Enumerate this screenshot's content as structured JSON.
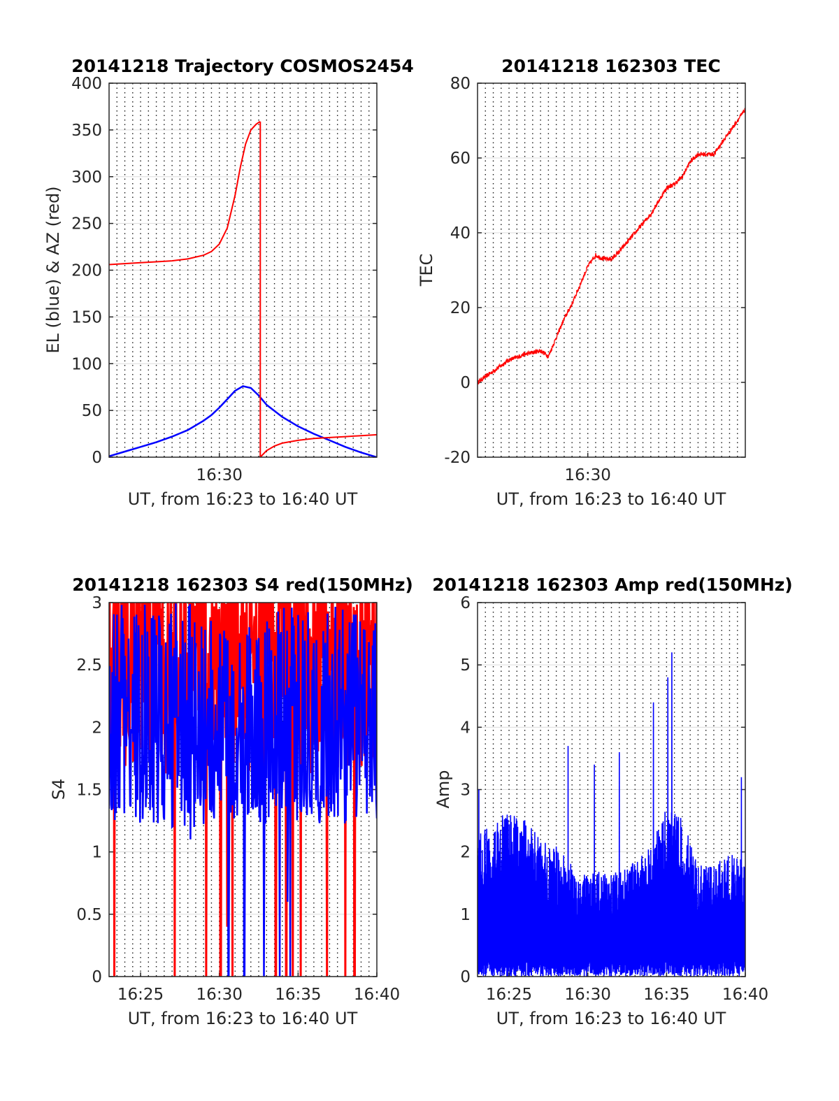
{
  "figure_date": "20141218",
  "chart_data": [
    {
      "id": "trajectory",
      "type": "line",
      "title": "20141218 Trajectory COSMOS2454",
      "xlabel": "UT, from 16:23 to 16:40 UT",
      "ylabel": "EL (blue) & AZ (red)",
      "xlim": [
        "16:23",
        "16:40"
      ],
      "ylim": [
        0,
        400
      ],
      "yticks": [
        0,
        50,
        100,
        150,
        200,
        250,
        300,
        350,
        400
      ],
      "xtick_labels": [
        {
          "t": "16:30",
          "label": "16:30"
        }
      ],
      "grid": "horizontal at y ticks; dotted verticals every 30 s",
      "series": [
        {
          "name": "EL",
          "color": "#0000ff",
          "x": [
            "16:23:00",
            "16:24:00",
            "16:25:00",
            "16:26:00",
            "16:27:00",
            "16:28:00",
            "16:29:00",
            "16:29:30",
            "16:30:00",
            "16:30:30",
            "16:31:00",
            "16:31:30",
            "16:32:00",
            "16:32:30",
            "16:33:00",
            "16:34:00",
            "16:35:00",
            "16:36:00",
            "16:37:00",
            "16:38:00",
            "16:39:00",
            "16:40:00"
          ],
          "y": [
            1,
            6,
            11,
            16,
            22,
            29,
            39,
            45,
            53,
            62,
            71,
            76,
            74,
            66,
            56,
            43,
            33,
            25,
            18,
            11,
            5,
            0
          ]
        },
        {
          "name": "AZ",
          "color": "#ff0000",
          "x": [
            "16:23:00",
            "16:24:00",
            "16:25:00",
            "16:26:00",
            "16:27:00",
            "16:28:00",
            "16:29:00",
            "16:29:30",
            "16:30:00",
            "16:30:30",
            "16:31:00",
            "16:31:20",
            "16:31:40",
            "16:32:00",
            "16:32:20",
            "16:32:35",
            "16:32:36",
            "16:33:00",
            "16:33:30",
            "16:34:00",
            "16:35:00",
            "16:36:00",
            "16:37:00",
            "16:38:00",
            "16:39:00",
            "16:40:00"
          ],
          "y": [
            206,
            207,
            208,
            209,
            210,
            212,
            216,
            220,
            228,
            245,
            280,
            310,
            335,
            350,
            356,
            359,
            0,
            7,
            12,
            15,
            18,
            20,
            21,
            22,
            23,
            24
          ]
        }
      ]
    },
    {
      "id": "tec",
      "type": "line",
      "title": "20141218 162303 TEC",
      "xlabel": "UT, from 16:23 to 16:40 UT",
      "ylabel": "TEC",
      "xlim": [
        "16:23",
        "16:40"
      ],
      "ylim": [
        -20,
        80
      ],
      "yticks": [
        -20,
        0,
        20,
        40,
        60,
        80
      ],
      "xtick_labels": [
        {
          "t": "16:30",
          "label": "16:30"
        }
      ],
      "grid": "horizontal at y ticks; dotted verticals every 30 s",
      "series": [
        {
          "name": "TEC",
          "color": "#ff0000",
          "noise": 1.2,
          "x": [
            "16:23:00",
            "16:24:00",
            "16:25:00",
            "16:26:00",
            "16:27:00",
            "16:27:30",
            "16:28:00",
            "16:28:30",
            "16:29:00",
            "16:29:30",
            "16:30:00",
            "16:30:30",
            "16:31:00",
            "16:31:30",
            "16:32:00",
            "16:33:00",
            "16:34:00",
            "16:35:00",
            "16:35:30",
            "16:36:00",
            "16:36:30",
            "16:37:00",
            "16:38:00",
            "16:39:00",
            "16:40:00"
          ],
          "y": [
            0,
            3,
            6,
            7.5,
            8.5,
            7,
            12,
            17,
            21,
            26,
            31,
            34,
            33,
            33,
            35,
            40,
            45,
            52,
            53,
            55,
            59,
            61,
            61,
            67,
            73
          ]
        }
      ]
    },
    {
      "id": "s4",
      "type": "line",
      "title": "20141218 162303 S4 red(150MHz)",
      "xlabel": "UT, from 16:23 to 16:40 UT",
      "ylabel": "S4",
      "xlim": [
        "16:23",
        "16:40"
      ],
      "ylim": [
        0,
        3
      ],
      "yticks": [
        0,
        0.5,
        1,
        1.5,
        2,
        2.5,
        3
      ],
      "xtick_labels": [
        {
          "t": "16:25",
          "label": "16:25"
        },
        {
          "t": "16:30",
          "label": "16:30"
        },
        {
          "t": "16:35",
          "label": "16:35"
        },
        {
          "t": "16:40",
          "label": "16:40"
        }
      ],
      "grid": "horizontal at y ticks; dotted verticals every 30 s",
      "series": [
        {
          "color": "#ff0000",
          "base": 2.7,
          "spread": 0.8,
          "floor": 1.6,
          "dips_to_zero_at": [
            "16:23:20",
            "16:27:10",
            "16:29:10",
            "16:30:05",
            "16:30:50",
            "16:33:35",
            "16:34:15",
            "16:34:40",
            "16:35:10",
            "16:36:50",
            "16:38:00",
            "16:38:35"
          ],
          "low_values": [
            {
              "t": "16:30:30",
              "y": 0.4
            }
          ]
        },
        {
          "color": "#0000ff",
          "base": 2.1,
          "spread": 0.9,
          "floor": 1.2,
          "dips_to_zero_at": [
            "16:30:35",
            "16:31:35",
            "16:32:50",
            "16:33:50",
            "16:34:30"
          ],
          "low_values": [
            {
              "t": "16:34:20",
              "y": 0.6
            },
            {
              "t": "16:27:00",
              "y": 1.2
            },
            {
              "t": "16:28:10",
              "y": 1.1
            }
          ]
        }
      ]
    },
    {
      "id": "amp",
      "type": "line",
      "title": "20141218 162303 Amp red(150MHz)",
      "xlabel": "UT, from 16:23 to 16:40 UT",
      "ylabel": "Amp",
      "xlim": [
        "16:23",
        "16:40"
      ],
      "ylim": [
        0,
        6
      ],
      "yticks": [
        0,
        1,
        2,
        3,
        4,
        5,
        6
      ],
      "xtick_labels": [
        {
          "t": "16:25",
          "label": "16:25"
        },
        {
          "t": "16:30",
          "label": "16:30"
        },
        {
          "t": "16:35",
          "label": "16:35"
        },
        {
          "t": "16:40",
          "label": "16:40"
        }
      ],
      "grid": "horizontal at y ticks; dotted verticals every 30 s",
      "series": [
        {
          "color": "#0000ff",
          "envelope_x": [
            "16:23:00",
            "16:24:00",
            "16:25:00",
            "16:26:00",
            "16:27:00",
            "16:28:00",
            "16:29:00",
            "16:30:00",
            "16:31:00",
            "16:32:00",
            "16:33:00",
            "16:34:00",
            "16:35:00",
            "16:36:00",
            "16:37:00",
            "16:38:00",
            "16:39:00",
            "16:40:00"
          ],
          "envelope_y": [
            2.2,
            2.3,
            2.6,
            2.4,
            2.1,
            2.0,
            1.7,
            1.6,
            1.6,
            1.6,
            1.8,
            2.0,
            2.6,
            2.5,
            1.7,
            1.7,
            1.9,
            1.8
          ],
          "peaks": [
            {
              "t": "16:28:45",
              "y": 3.7
            },
            {
              "t": "16:30:25",
              "y": 3.4
            },
            {
              "t": "16:32:00",
              "y": 3.6
            },
            {
              "t": "16:34:10",
              "y": 4.4
            },
            {
              "t": "16:35:20",
              "y": 5.2
            },
            {
              "t": "16:35:05",
              "y": 4.8
            },
            {
              "t": "16:39:45",
              "y": 3.2
            },
            {
              "t": "16:23:05",
              "y": 3.0
            }
          ]
        }
      ]
    }
  ]
}
